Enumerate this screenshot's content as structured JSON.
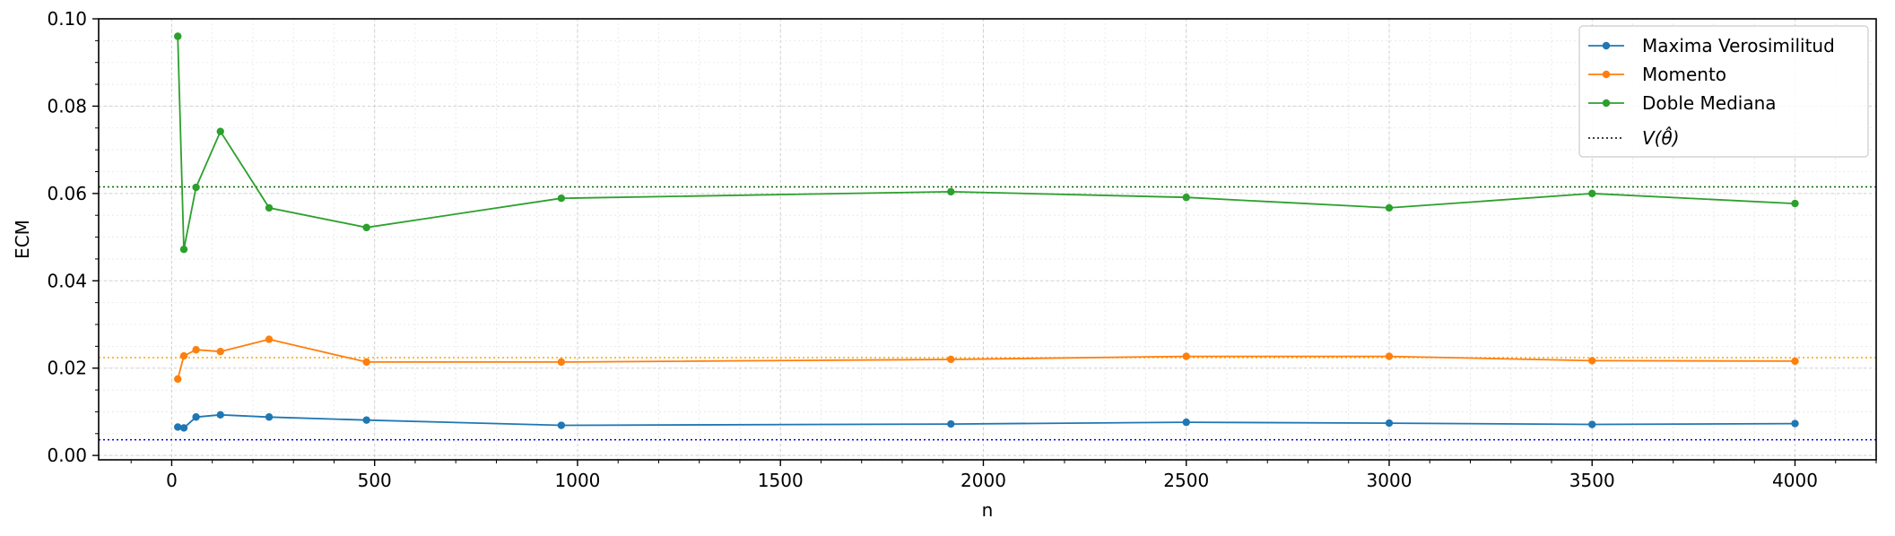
{
  "chart_data": {
    "type": "line",
    "title": "",
    "xlabel": "n",
    "ylabel": "ECM",
    "xlim": [
      -180,
      4200
    ],
    "ylim": [
      -0.001,
      0.1
    ],
    "xticks": [
      0,
      500,
      1000,
      1500,
      2000,
      2500,
      3000,
      3500,
      4000
    ],
    "xtick_labels": [
      "0",
      "500",
      "1000",
      "1500",
      "2000",
      "2500",
      "3000",
      "3500",
      "4000"
    ],
    "yticks": [
      0.0,
      0.02,
      0.04,
      0.06,
      0.08,
      0.1
    ],
    "ytick_labels": [
      "0.00",
      "0.02",
      "0.04",
      "0.06",
      "0.08",
      "0.10"
    ],
    "grid": true,
    "legend_position": "top-right",
    "x": [
      15,
      30,
      60,
      120,
      240,
      480,
      960,
      1920,
      2500,
      3000,
      3500,
      4000
    ],
    "series": [
      {
        "name": "Maxima Verosimilitud",
        "color": "#1f77b4",
        "marker": "circle",
        "values": [
          0.0065,
          0.0063,
          0.0088,
          0.0093,
          0.0088,
          0.0081,
          0.0069,
          0.0072,
          0.0076,
          0.0074,
          0.0071,
          0.0073
        ]
      },
      {
        "name": "Momento",
        "color": "#ff7f0e",
        "marker": "circle",
        "values": [
          0.0175,
          0.0228,
          0.0242,
          0.0238,
          0.0266,
          0.0214,
          0.0214,
          0.022,
          0.0227,
          0.0227,
          0.0217,
          0.0216
        ]
      },
      {
        "name": "Doble Mediana",
        "color": "#2ca02c",
        "marker": "circle",
        "values": [
          0.096,
          0.0472,
          0.0614,
          0.0742,
          0.0567,
          0.0522,
          0.0589,
          0.0604,
          0.0591,
          0.0567,
          0.06,
          0.0577
        ]
      }
    ],
    "reference_lines": [
      {
        "y": 0.0036,
        "color": "#0000cd",
        "style": "dotted"
      },
      {
        "y": 0.0224,
        "color": "#ffa500",
        "style": "dotted"
      },
      {
        "y": 0.0615,
        "color": "#006400",
        "style": "dotted"
      }
    ],
    "reference_legend_label": "V(θ̂)"
  }
}
